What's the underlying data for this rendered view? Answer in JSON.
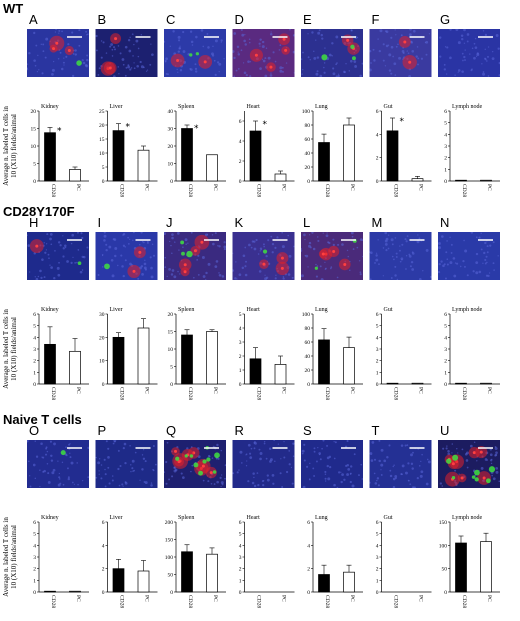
{
  "sections": [
    {
      "title": "WT",
      "ylabel": [
        "Average n. labeled T cells in",
        "10 (X10) fields/animal"
      ],
      "panels": [
        {
          "letter": "A",
          "image": {
            "bg": "#2a35a0",
            "red": 3,
            "green": 1
          }
        },
        {
          "letter": "B",
          "image": {
            "bg": "#1c2070",
            "red": 3,
            "green": 0
          }
        },
        {
          "letter": "C",
          "image": {
            "bg": "#2c3aa8",
            "red": 2,
            "green": 2
          }
        },
        {
          "letter": "D",
          "image": {
            "bg": "#5a2a80",
            "red": 4,
            "green": 0
          }
        },
        {
          "letter": "E",
          "image": {
            "bg": "#2c3090",
            "red": 2,
            "green": 3
          }
        },
        {
          "letter": "F",
          "image": {
            "bg": "#3a3aa0",
            "red": 2,
            "green": 0
          }
        },
        {
          "letter": "G",
          "image": {
            "bg": "#2a34a4",
            "red": 0,
            "green": 0
          }
        }
      ],
      "charts": [
        {
          "title": "Kidney",
          "categories": [
            "CD28",
            "PC"
          ],
          "values": [
            13.8,
            3.3
          ],
          "errors": [
            1.5,
            0.7
          ],
          "ylim": [
            0,
            20
          ],
          "yticks": [
            0,
            5,
            10,
            15,
            20
          ],
          "stars": [
            true,
            false
          ]
        },
        {
          "title": "Liver",
          "categories": [
            "CD28",
            "PC"
          ],
          "values": [
            18,
            11
          ],
          "errors": [
            2.5,
            1.5
          ],
          "ylim": [
            0,
            25
          ],
          "yticks": [
            0,
            5,
            10,
            15,
            20,
            25
          ],
          "stars": [
            true,
            false
          ]
        },
        {
          "title": "Spleen",
          "categories": [
            "CD28",
            "PC"
          ],
          "values": [
            30,
            15
          ],
          "errors": [
            2,
            0
          ],
          "ylim": [
            0,
            40
          ],
          "yticks": [
            0,
            10,
            20,
            30,
            40
          ],
          "stars": [
            true,
            false
          ]
        },
        {
          "title": "Heart",
          "categories": [
            "CD28",
            "PC"
          ],
          "values": [
            5,
            0.7
          ],
          "errors": [
            1,
            0.3
          ],
          "ylim": [
            0,
            7
          ],
          "yticks": [
            0,
            2,
            4,
            6
          ],
          "stars": [
            true,
            false
          ]
        },
        {
          "title": "Lung",
          "categories": [
            "CD28",
            "PC"
          ],
          "values": [
            55,
            80
          ],
          "errors": [
            12,
            10
          ],
          "ylim": [
            0,
            100
          ],
          "yticks": [
            0,
            20,
            40,
            60,
            80,
            100
          ],
          "stars": [
            false,
            false
          ]
        },
        {
          "title": "Gut",
          "categories": [
            "CD28",
            "PC"
          ],
          "values": [
            4.3,
            0.2
          ],
          "errors": [
            1.1,
            0.2
          ],
          "ylim": [
            0,
            6
          ],
          "yticks": [
            0,
            2,
            4,
            6
          ],
          "stars": [
            true,
            false
          ]
        },
        {
          "title": "Lymph node",
          "categories": [
            "CD28",
            "PC"
          ],
          "values": [
            0.05,
            0.05
          ],
          "errors": [
            0,
            0
          ],
          "ylim": [
            0,
            6
          ],
          "yticks": [
            0,
            1,
            2,
            3,
            4,
            5,
            6
          ],
          "stars": [
            false,
            false
          ]
        }
      ]
    },
    {
      "title": "CD28Y170F",
      "ylabel": [
        "Average n. labeled T cells in",
        "10 (X10) fields/animal"
      ],
      "panels": [
        {
          "letter": "H",
          "image": {
            "bg": "#1e2a8c",
            "red": 1,
            "green": 1
          }
        },
        {
          "letter": "I",
          "image": {
            "bg": "#2a38a8",
            "red": 2,
            "green": 1
          }
        },
        {
          "letter": "J",
          "image": {
            "bg": "#3a2a80",
            "red": 4,
            "green": 3
          }
        },
        {
          "letter": "K",
          "image": {
            "bg": "#3a3090",
            "red": 3,
            "green": 1
          }
        },
        {
          "letter": "L",
          "image": {
            "bg": "#4a2a7a",
            "red": 4,
            "green": 2
          }
        },
        {
          "letter": "M",
          "image": {
            "bg": "#2c3aa6",
            "red": 0,
            "green": 0
          }
        },
        {
          "letter": "N",
          "image": {
            "bg": "#2a3aa8",
            "red": 0,
            "green": 0
          }
        }
      ],
      "charts": [
        {
          "title": "Kidney",
          "categories": [
            "CD28",
            "PC"
          ],
          "values": [
            3.4,
            2.8
          ],
          "errors": [
            1.5,
            1.1
          ],
          "ylim": [
            0,
            6
          ],
          "yticks": [
            0,
            1,
            2,
            3,
            4,
            5,
            6
          ],
          "stars": [
            false,
            false
          ]
        },
        {
          "title": "Liver",
          "categories": [
            "CD28",
            "PC"
          ],
          "values": [
            20,
            24
          ],
          "errors": [
            2,
            4
          ],
          "ylim": [
            0,
            30
          ],
          "yticks": [
            0,
            10,
            20,
            30
          ],
          "stars": [
            false,
            false
          ]
        },
        {
          "title": "Spleen",
          "categories": [
            "CD28",
            "PC"
          ],
          "values": [
            14,
            15
          ],
          "errors": [
            1.5,
            0.5
          ],
          "ylim": [
            0,
            20
          ],
          "yticks": [
            0,
            5,
            10,
            15,
            20
          ],
          "stars": [
            false,
            false
          ]
        },
        {
          "title": "Heart",
          "categories": [
            "CD28",
            "PC"
          ],
          "values": [
            1.8,
            1.4
          ],
          "errors": [
            0.8,
            0.6
          ],
          "ylim": [
            0,
            5
          ],
          "yticks": [
            0,
            1,
            2,
            3,
            4,
            5
          ],
          "stars": [
            false,
            false
          ]
        },
        {
          "title": "Lung",
          "categories": [
            "CD28",
            "PC"
          ],
          "values": [
            63,
            52
          ],
          "errors": [
            16,
            15
          ],
          "ylim": [
            0,
            100
          ],
          "yticks": [
            0,
            20,
            40,
            60,
            80,
            100
          ],
          "stars": [
            false,
            false
          ]
        },
        {
          "title": "Gut",
          "categories": [
            "CD28",
            "PC"
          ],
          "values": [
            0.05,
            0.05
          ],
          "errors": [
            0,
            0
          ],
          "ylim": [
            0,
            6
          ],
          "yticks": [
            0,
            1,
            2,
            3,
            4,
            5,
            6
          ],
          "stars": [
            false,
            false
          ]
        },
        {
          "title": "Lymph node",
          "categories": [
            "CD28",
            "PC"
          ],
          "values": [
            0.05,
            0.05
          ],
          "errors": [
            0,
            0
          ],
          "ylim": [
            0,
            6
          ],
          "yticks": [
            0,
            1,
            2,
            3,
            4,
            5,
            6
          ],
          "stars": [
            false,
            false
          ]
        }
      ]
    },
    {
      "title": "Naive T cells",
      "ylabel": [
        "Average n. labeled T cells in",
        "10 (X10) fields/animal"
      ],
      "panels": [
        {
          "letter": "O",
          "image": {
            "bg": "#222c90",
            "red": 0,
            "green": 1
          }
        },
        {
          "letter": "P",
          "image": {
            "bg": "#1e2a88",
            "red": 0,
            "green": 0
          }
        },
        {
          "letter": "Q",
          "image": {
            "bg": "#1e2070",
            "red": 8,
            "green": 10
          }
        },
        {
          "letter": "R",
          "image": {
            "bg": "#222a8a",
            "red": 0,
            "green": 0
          }
        },
        {
          "letter": "S",
          "image": {
            "bg": "#202a8c",
            "red": 0,
            "green": 0
          }
        },
        {
          "letter": "T",
          "image": {
            "bg": "#243094",
            "red": 0,
            "green": 0
          }
        },
        {
          "letter": "U",
          "image": {
            "bg": "#1c1c60",
            "red": 8,
            "green": 8
          }
        }
      ],
      "charts": [
        {
          "title": "Kidney",
          "categories": [
            "CD28",
            "PC"
          ],
          "values": [
            0.05,
            0.05
          ],
          "errors": [
            0,
            0
          ],
          "ylim": [
            0,
            6
          ],
          "yticks": [
            0,
            1,
            2,
            3,
            4,
            5,
            6
          ],
          "stars": [
            false,
            false
          ]
        },
        {
          "title": "Liver",
          "categories": [
            "CD28",
            "PC"
          ],
          "values": [
            2,
            1.8
          ],
          "errors": [
            0.8,
            0.9
          ],
          "ylim": [
            0,
            6
          ],
          "yticks": [
            0,
            2,
            4,
            6
          ],
          "stars": [
            false,
            false
          ]
        },
        {
          "title": "Spleen",
          "categories": [
            "CD28",
            "PC"
          ],
          "values": [
            115,
            108
          ],
          "errors": [
            20,
            18
          ],
          "ylim": [
            0,
            200
          ],
          "yticks": [
            0,
            50,
            100,
            150,
            200
          ],
          "stars": [
            false,
            false
          ]
        },
        {
          "title": "Heart",
          "categories": [
            "CD28",
            "PC"
          ],
          "values": [
            0,
            0
          ],
          "errors": [
            0,
            0
          ],
          "ylim": [
            0,
            6
          ],
          "yticks": [
            0,
            1,
            2,
            3,
            4,
            5,
            6
          ],
          "stars": [
            false,
            false
          ]
        },
        {
          "title": "Lung",
          "categories": [
            "CD28",
            "PC"
          ],
          "values": [
            1.5,
            1.7
          ],
          "errors": [
            0.8,
            0.6
          ],
          "ylim": [
            0,
            6
          ],
          "yticks": [
            0,
            2,
            4,
            6
          ],
          "stars": [
            false,
            false
          ]
        },
        {
          "title": "Gut",
          "categories": [
            "CD28",
            "PC"
          ],
          "values": [
            0,
            0
          ],
          "errors": [
            0,
            0
          ],
          "ylim": [
            0,
            6
          ],
          "yticks": [
            0,
            1,
            2,
            3,
            4,
            5,
            6
          ],
          "stars": [
            false,
            false
          ]
        },
        {
          "title": "Lymph node",
          "categories": [
            "CD28",
            "PC"
          ],
          "values": [
            105,
            108
          ],
          "errors": [
            15,
            18
          ],
          "ylim": [
            0,
            150
          ],
          "yticks": [
            0,
            50,
            100,
            150
          ],
          "stars": [
            false,
            false
          ]
        }
      ]
    }
  ],
  "chart_data": [
    {
      "type": "bar",
      "title": "Kidney",
      "categories": [
        "CD28",
        "PC"
      ],
      "values": [
        13.8,
        3.3
      ],
      "ylim": [
        0,
        20
      ]
    },
    {
      "type": "bar",
      "title": "Liver",
      "categories": [
        "CD28",
        "PC"
      ],
      "values": [
        18,
        11
      ],
      "ylim": [
        0,
        25
      ]
    },
    {
      "type": "bar",
      "title": "Spleen",
      "categories": [
        "CD28",
        "PC"
      ],
      "values": [
        30,
        15
      ],
      "ylim": [
        0,
        40
      ]
    },
    {
      "type": "bar",
      "title": "Heart",
      "categories": [
        "CD28",
        "PC"
      ],
      "values": [
        5,
        0.7
      ],
      "ylim": [
        0,
        7
      ]
    },
    {
      "type": "bar",
      "title": "Lung",
      "categories": [
        "CD28",
        "PC"
      ],
      "values": [
        55,
        80
      ],
      "ylim": [
        0,
        100
      ]
    },
    {
      "type": "bar",
      "title": "Gut",
      "categories": [
        "CD28",
        "PC"
      ],
      "values": [
        4.3,
        0.2
      ],
      "ylim": [
        0,
        6
      ]
    },
    {
      "type": "bar",
      "title": "Lymph node",
      "categories": [
        "CD28",
        "PC"
      ],
      "values": [
        0.05,
        0.05
      ],
      "ylim": [
        0,
        6
      ]
    },
    {
      "type": "bar",
      "title": "Kidney",
      "categories": [
        "CD28",
        "PC"
      ],
      "values": [
        3.4,
        2.8
      ],
      "ylim": [
        0,
        6
      ]
    },
    {
      "type": "bar",
      "title": "Liver",
      "categories": [
        "CD28",
        "PC"
      ],
      "values": [
        20,
        24
      ],
      "ylim": [
        0,
        30
      ]
    },
    {
      "type": "bar",
      "title": "Spleen",
      "categories": [
        "CD28",
        "PC"
      ],
      "values": [
        14,
        15
      ],
      "ylim": [
        0,
        20
      ]
    },
    {
      "type": "bar",
      "title": "Heart",
      "categories": [
        "CD28",
        "PC"
      ],
      "values": [
        1.8,
        1.4
      ],
      "ylim": [
        0,
        5
      ]
    },
    {
      "type": "bar",
      "title": "Lung",
      "categories": [
        "CD28",
        "PC"
      ],
      "values": [
        63,
        52
      ],
      "ylim": [
        0,
        100
      ]
    },
    {
      "type": "bar",
      "title": "Gut",
      "categories": [
        "CD28",
        "PC"
      ],
      "values": [
        0.05,
        0.05
      ],
      "ylim": [
        0,
        6
      ]
    },
    {
      "type": "bar",
      "title": "Lymph node",
      "categories": [
        "CD28",
        "PC"
      ],
      "values": [
        0.05,
        0.05
      ],
      "ylim": [
        0,
        6
      ]
    },
    {
      "type": "bar",
      "title": "Kidney",
      "categories": [
        "CD28",
        "PC"
      ],
      "values": [
        0.05,
        0.05
      ],
      "ylim": [
        0,
        6
      ]
    },
    {
      "type": "bar",
      "title": "Liver",
      "categories": [
        "CD28",
        "PC"
      ],
      "values": [
        2,
        1.8
      ],
      "ylim": [
        0,
        6
      ]
    },
    {
      "type": "bar",
      "title": "Spleen",
      "categories": [
        "CD28",
        "PC"
      ],
      "values": [
        115,
        108
      ],
      "ylim": [
        0,
        200
      ]
    },
    {
      "type": "bar",
      "title": "Heart",
      "categories": [
        "CD28",
        "PC"
      ],
      "values": [
        0,
        0
      ],
      "ylim": [
        0,
        6
      ]
    },
    {
      "type": "bar",
      "title": "Lung",
      "categories": [
        "CD28",
        "PC"
      ],
      "values": [
        1.5,
        1.7
      ],
      "ylim": [
        0,
        6
      ]
    },
    {
      "type": "bar",
      "title": "Gut",
      "categories": [
        "CD28",
        "PC"
      ],
      "values": [
        0,
        0
      ],
      "ylim": [
        0,
        6
      ]
    },
    {
      "type": "bar",
      "title": "Lymph node",
      "categories": [
        "CD28",
        "PC"
      ],
      "values": [
        105,
        108
      ],
      "ylim": [
        0,
        150
      ]
    }
  ]
}
